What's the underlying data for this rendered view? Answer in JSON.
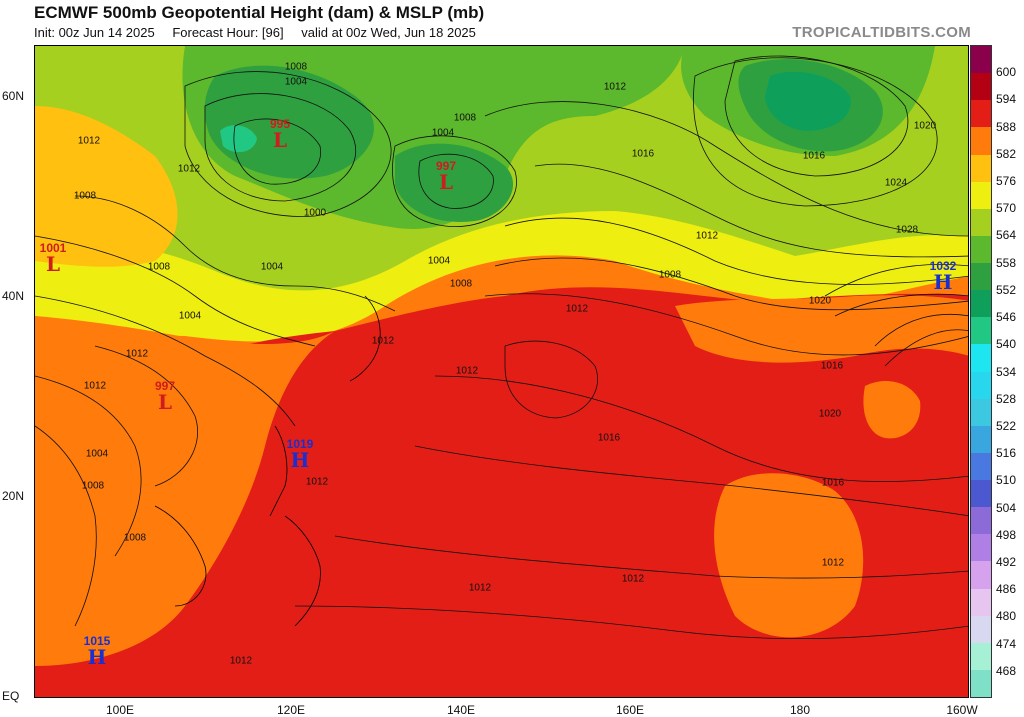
{
  "header": {
    "title": "ECMWF 500mb Geopotential Height (dam) & MSLP (mb)",
    "init": "Init: 00z Jun 14 2025",
    "forecast_hour": "Forecast Hour: [96]",
    "valid": "valid at 00z Wed, Jun 18 2025",
    "brand": "TROPICALTIDBITS.COM"
  },
  "axes": {
    "lat_labels": [
      "60N",
      "40N",
      "20N",
      "EQ"
    ],
    "lon_labels": [
      "100E",
      "120E",
      "140E",
      "160E",
      "180",
      "160W"
    ]
  },
  "colorbar": {
    "levels": [
      "468",
      "474",
      "480",
      "486",
      "492",
      "498",
      "504",
      "510",
      "516",
      "522",
      "528",
      "534",
      "540",
      "546",
      "552",
      "558",
      "564",
      "570",
      "576",
      "582",
      "588",
      "594",
      "600"
    ],
    "colors": [
      "#7fe0c8",
      "#a6f0d6",
      "#d8d8f0",
      "#e6c6f0",
      "#d6a2ee",
      "#b07fe6",
      "#8c6ad8",
      "#4b58d0",
      "#4878e0",
      "#3aa6e0",
      "#3cc8e0",
      "#28d6ee",
      "#1ee6f0",
      "#20c884",
      "#0ea05a",
      "#2fa040",
      "#5cb82c",
      "#a6d020",
      "#eeee10",
      "#ffc010",
      "#ff7b0c",
      "#e31e16",
      "#b30012",
      "#8a004a"
    ]
  },
  "pressure_centers": [
    {
      "type": "L",
      "value": "995"
    },
    {
      "type": "L",
      "value": "997"
    },
    {
      "type": "L",
      "value": "1001"
    },
    {
      "type": "L",
      "value": "997"
    },
    {
      "type": "H",
      "value": "1032"
    },
    {
      "type": "H",
      "value": "1019"
    },
    {
      "type": "H",
      "value": "1015"
    }
  ],
  "isobar_labels": [
    "1008",
    "1004",
    "1012",
    "1000",
    "1004",
    "1008",
    "1012",
    "1016",
    "1016",
    "1020",
    "1024",
    "1028",
    "1012",
    "1008",
    "1012",
    "1004",
    "1008",
    "1004",
    "1004",
    "1008",
    "1012",
    "1016",
    "1012",
    "1012",
    "1016",
    "1020",
    "1020",
    "1016",
    "1012",
    "1012",
    "1012",
    "1012",
    "1008",
    "1008",
    "1012",
    "1012",
    "1008",
    "1004",
    "1012"
  ]
}
